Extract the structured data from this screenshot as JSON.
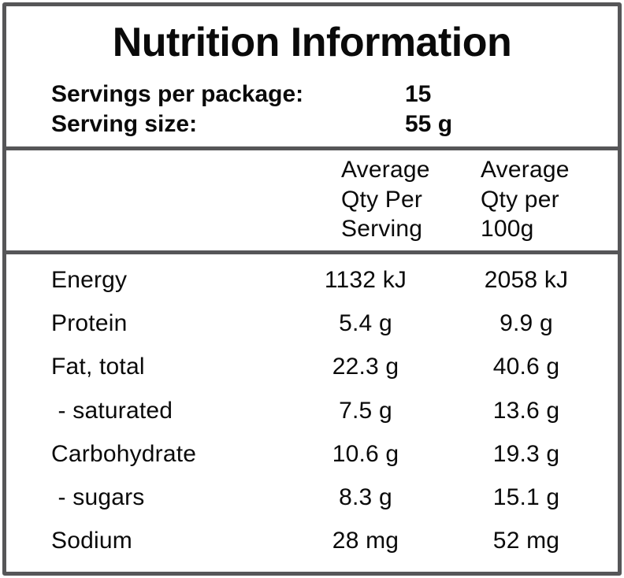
{
  "label": {
    "title": "Nutrition Information",
    "servings": [
      {
        "label": "Servings per package:",
        "value": "15"
      },
      {
        "label": "Serving size:",
        "value": "55 g"
      }
    ],
    "columns": {
      "serving": [
        "Average",
        "Qty Per",
        "Serving"
      ],
      "per100g": [
        "Average",
        "Qty per",
        "100g"
      ]
    },
    "rows": [
      {
        "nutrient": "Energy",
        "per_serving": "1132 kJ",
        "per_100g": "2058 kJ"
      },
      {
        "nutrient": "Protein",
        "per_serving": "5.4 g",
        "per_100g": "9.9 g"
      },
      {
        "nutrient": "Fat, total",
        "per_serving": "22.3 g",
        "per_100g": "40.6 g"
      },
      {
        "nutrient": " - saturated",
        "per_serving": "7.5 g",
        "per_100g": "13.6 g"
      },
      {
        "nutrient": "Carbohydrate",
        "per_serving": "10.6 g",
        "per_100g": "19.3 g"
      },
      {
        "nutrient": " - sugars",
        "per_serving": "8.3 g",
        "per_100g": "15.1 g"
      },
      {
        "nutrient": "Sodium",
        "per_serving": "28 mg",
        "per_100g": "52 mg"
      }
    ],
    "colors": {
      "border": "#565658",
      "text": "#0a0a0a",
      "background": "#ffffff"
    }
  }
}
